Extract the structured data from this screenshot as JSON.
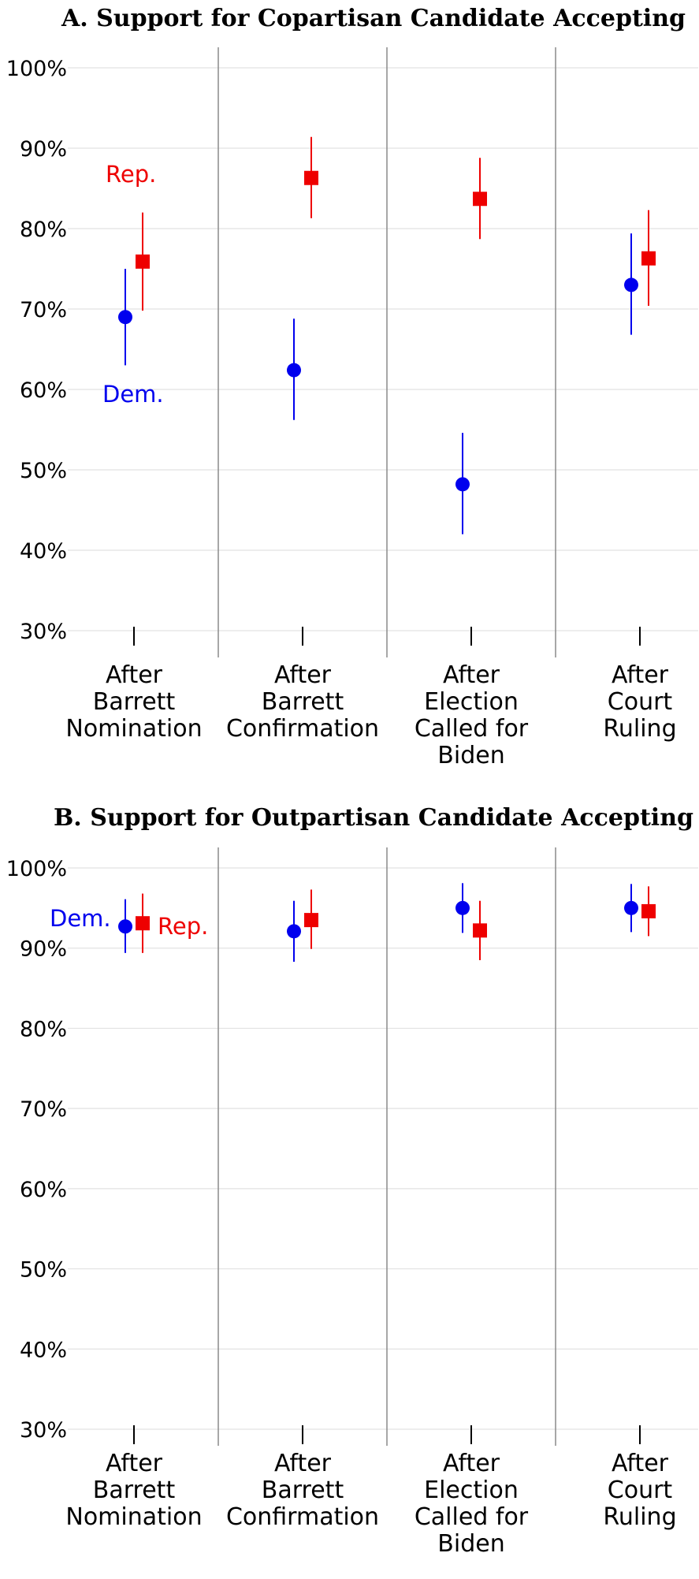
{
  "chart_data": [
    {
      "type": "scatter",
      "title": "A. Support for Copartisan Candidate Accepting",
      "categories": [
        [
          "After",
          "Barrett",
          "Nomination"
        ],
        [
          "After",
          "Barrett",
          "Confirmation"
        ],
        [
          "After",
          "Election",
          "Called for",
          "Biden"
        ],
        [
          "After",
          "Court",
          "Ruling"
        ]
      ],
      "ylim": [
        30,
        100
      ],
      "yticks": [
        30,
        40,
        50,
        60,
        70,
        80,
        90,
        100
      ],
      "ytick_labels": [
        "30%",
        "40%",
        "50%",
        "60%",
        "70%",
        "80%",
        "90%",
        "100%"
      ],
      "grid": true,
      "series": [
        {
          "name": "Dem.",
          "color": "#0000ee",
          "marker": "circle",
          "values": [
            69.0,
            62.4,
            48.2,
            73.0
          ],
          "lower": [
            63.0,
            56.2,
            42.0,
            66.8
          ],
          "upper": [
            75.0,
            68.8,
            54.6,
            79.4
          ]
        },
        {
          "name": "Rep.",
          "color": "#ee0000",
          "marker": "square",
          "values": [
            75.9,
            86.3,
            83.7,
            76.3
          ],
          "lower": [
            69.8,
            81.3,
            78.7,
            70.4
          ],
          "upper": [
            82.0,
            91.4,
            88.8,
            82.3
          ]
        }
      ]
    },
    {
      "type": "scatter",
      "title": "B. Support for Outpartisan Candidate Accepting",
      "categories": [
        [
          "After",
          "Barrett",
          "Nomination"
        ],
        [
          "After",
          "Barrett",
          "Confirmation"
        ],
        [
          "After",
          "Election",
          "Called for",
          "Biden"
        ],
        [
          "After",
          "Court",
          "Ruling"
        ]
      ],
      "ylim": [
        30,
        100
      ],
      "yticks": [
        30,
        40,
        50,
        60,
        70,
        80,
        90,
        100
      ],
      "ytick_labels": [
        "30%",
        "40%",
        "50%",
        "60%",
        "70%",
        "80%",
        "90%",
        "100%"
      ],
      "grid": true,
      "series": [
        {
          "name": "Dem.",
          "color": "#0000ee",
          "marker": "circle",
          "values": [
            92.7,
            92.1,
            95.0,
            95.0
          ],
          "lower": [
            89.4,
            88.3,
            91.9,
            92.0
          ],
          "upper": [
            96.1,
            95.9,
            98.1,
            98.0
          ]
        },
        {
          "name": "Rep.",
          "color": "#ee0000",
          "marker": "square",
          "values": [
            93.1,
            93.5,
            92.2,
            94.6
          ],
          "lower": [
            89.4,
            89.9,
            88.5,
            91.5
          ],
          "upper": [
            96.8,
            97.3,
            95.9,
            97.7
          ]
        }
      ]
    }
  ]
}
